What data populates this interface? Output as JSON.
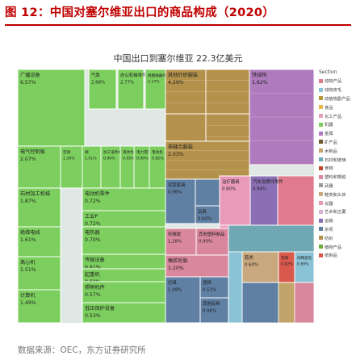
{
  "header": {
    "title": "图 12：中国对塞尔维亚出口的商品构成（2020）"
  },
  "footer": {
    "source": "数据来源：OEC，东方证券研究所"
  },
  "chart_data": {
    "type": "treemap",
    "title": "中国出口到塞尔维亚 22.3亿美元",
    "legend": {
      "title": "Section",
      "position": "right",
      "items": [
        {
          "label": "动物产品",
          "color": "#e07b8f"
        },
        {
          "label": "动物皮毛",
          "color": "#8bc3d6"
        },
        {
          "label": "动植物副产品",
          "color": "#b79a3e"
        },
        {
          "label": "食品",
          "color": "#e6b84a"
        },
        {
          "label": "化工产品",
          "color": "#e8a0c0"
        },
        {
          "label": "机器",
          "color": "#7ccf5e"
        },
        {
          "label": "金属",
          "color": "#b07bbd"
        },
        {
          "label": "矿产品",
          "color": "#6f5a2a"
        },
        {
          "label": "木制品",
          "color": "#c2a36a"
        },
        {
          "label": "石材和玻璃",
          "color": "#6fa7b3"
        },
        {
          "label": "食物",
          "color": "#c04a2c"
        },
        {
          "label": "塑料和橡胶",
          "color": "#d9879c"
        },
        {
          "label": "武器",
          "color": "#9d9d9d"
        },
        {
          "label": "鞋类和头饰",
          "color": "#c9a880"
        },
        {
          "label": "仪器",
          "color": "#e89ab8"
        },
        {
          "label": "艺术和古董",
          "color": "#d8b2d0"
        },
        {
          "label": "运输",
          "color": "#8a6fb4"
        },
        {
          "label": "杂项",
          "color": "#5f7fa3"
        },
        {
          "label": "纺织",
          "color": "#b5924c"
        },
        {
          "label": "植物产品",
          "color": "#6cae3e"
        },
        {
          "label": "纸制品",
          "color": "#d9594c"
        }
      ]
    },
    "items": [
      {
        "label": "广播设备",
        "value": 6.57,
        "section": "机器"
      },
      {
        "label": "气泵",
        "value": 2.88,
        "section": "机器"
      },
      {
        "label": "办公机械零件",
        "value": 2.77,
        "section": "机器"
      },
      {
        "label": "线圈磁器件",
        "value": 2.17,
        "section": "机器"
      },
      {
        "label": "电气控制板",
        "value": 2.07,
        "section": "机器"
      },
      {
        "label": "空调",
        "value": 1.39,
        "section": "机器"
      },
      {
        "label": "阀",
        "value": 1.01,
        "section": "机器"
      },
      {
        "label": "加工设件机械",
        "value": 0.96,
        "section": "机器"
      },
      {
        "label": "液体泵",
        "value": 0.95,
        "section": "机器"
      },
      {
        "label": "电力变压器",
        "value": 0.9,
        "section": "机器"
      },
      {
        "label": "电动机",
        "value": 0.82,
        "section": "机器"
      },
      {
        "label": "石材加工机械",
        "value": 1.87,
        "section": "机器"
      },
      {
        "label": "电动机零件",
        "value": 0.72,
        "section": "机器"
      },
      {
        "label": "工业P",
        "value": 0.72,
        "section": "机器"
      },
      {
        "label": "绝缘电线",
        "value": 1.61,
        "section": "机器"
      },
      {
        "label": "电热器",
        "value": 0.7,
        "section": "机器"
      },
      {
        "label": "离心机",
        "value": 1.51,
        "section": "机器"
      },
      {
        "label": "传输设备",
        "value": 0.61,
        "section": "机器"
      },
      {
        "label": "起重机",
        "value": 0.6,
        "section": "机器"
      },
      {
        "label": "计算机",
        "value": 1.49,
        "section": "机器"
      },
      {
        "label": "照明机件",
        "value": 0.57,
        "section": "机器"
      },
      {
        "label": "低压保护设备",
        "value": 0.53,
        "section": "机器"
      },
      {
        "label": "其他针织服装",
        "value": 4.29,
        "section": "纺织"
      },
      {
        "label": "",
        "value": 3.9,
        "section": "纺织"
      },
      {
        "label": "",
        "value": 2.8,
        "section": "纺织"
      },
      {
        "label": "",
        "value": 2.6,
        "section": "纺织"
      },
      {
        "label": "非缝合服装",
        "value": 2.03,
        "section": "纺织"
      },
      {
        "label": "铁结构",
        "value": 1.82,
        "section": "金属"
      },
      {
        "label": "实型家具",
        "value": 0.98,
        "section": "杂项"
      },
      {
        "label": "",
        "value": 0.9,
        "section": "杂项"
      },
      {
        "label": "玩具",
        "value": 0.6,
        "section": "杂项"
      },
      {
        "label": "治疗器具",
        "value": 0.8,
        "section": "仪器"
      },
      {
        "label": "汽车及摩托零件",
        "value": 0.94,
        "section": "运输"
      },
      {
        "label": "形橡胶",
        "value": 1.28,
        "section": "塑料和橡胶"
      },
      {
        "label": "其他塑料制品",
        "value": 0.9,
        "section": "塑料和橡胶"
      },
      {
        "label": "橡胶轮胎",
        "value": 1.2,
        "section": "塑料和橡胶"
      },
      {
        "label": "灯具",
        "value": 1.49,
        "section": "杂项"
      },
      {
        "label": "座椅",
        "value": 0.51,
        "section": "杂项"
      },
      {
        "label": "其他玩具",
        "value": 0.96,
        "section": "杂项"
      },
      {
        "label": "卷筒",
        "value": 0.82,
        "section": "纸制品"
      },
      {
        "label": "动物皮毛",
        "value": 0.89,
        "section": "动物皮毛"
      },
      {
        "label": "鞋类",
        "value": 0.6,
        "section": "鞋类和头饰"
      }
    ]
  }
}
